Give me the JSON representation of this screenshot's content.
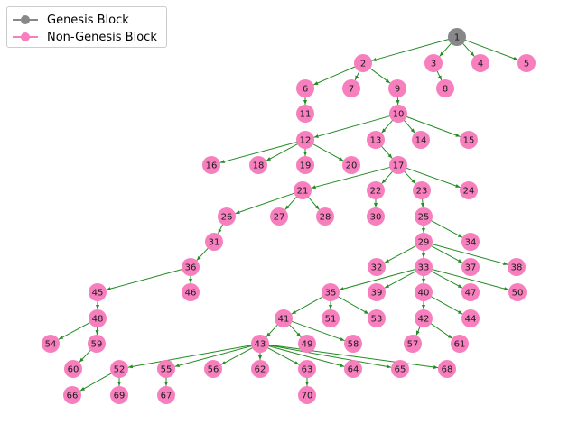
{
  "legend": {
    "genesis_label": "Genesis Block",
    "genesis_color": "#888888",
    "block_label": "Non-Genesis Block",
    "block_color": "#f77fbe"
  },
  "edge_color": "#228b22",
  "nodes": [
    {
      "id": "1",
      "genesis": true
    },
    {
      "id": "2"
    },
    {
      "id": "3"
    },
    {
      "id": "4"
    },
    {
      "id": "5"
    },
    {
      "id": "6"
    },
    {
      "id": "7"
    },
    {
      "id": "8"
    },
    {
      "id": "9"
    },
    {
      "id": "10"
    },
    {
      "id": "11"
    },
    {
      "id": "12"
    },
    {
      "id": "13"
    },
    {
      "id": "14"
    },
    {
      "id": "15"
    },
    {
      "id": "16"
    },
    {
      "id": "17"
    },
    {
      "id": "18"
    },
    {
      "id": "19"
    },
    {
      "id": "20"
    },
    {
      "id": "21"
    },
    {
      "id": "22"
    },
    {
      "id": "23"
    },
    {
      "id": "24"
    },
    {
      "id": "25"
    },
    {
      "id": "26"
    },
    {
      "id": "27"
    },
    {
      "id": "28"
    },
    {
      "id": "29"
    },
    {
      "id": "30"
    },
    {
      "id": "31"
    },
    {
      "id": "32"
    },
    {
      "id": "33"
    },
    {
      "id": "34"
    },
    {
      "id": "35"
    },
    {
      "id": "36"
    },
    {
      "id": "37"
    },
    {
      "id": "38"
    },
    {
      "id": "39"
    },
    {
      "id": "40"
    },
    {
      "id": "41"
    },
    {
      "id": "42"
    },
    {
      "id": "43"
    },
    {
      "id": "44"
    },
    {
      "id": "45"
    },
    {
      "id": "46"
    },
    {
      "id": "47"
    },
    {
      "id": "48"
    },
    {
      "id": "49"
    },
    {
      "id": "50"
    },
    {
      "id": "51"
    },
    {
      "id": "52"
    },
    {
      "id": "53"
    },
    {
      "id": "54"
    },
    {
      "id": "55"
    },
    {
      "id": "56"
    },
    {
      "id": "57"
    },
    {
      "id": "58"
    },
    {
      "id": "59"
    },
    {
      "id": "60"
    },
    {
      "id": "61"
    },
    {
      "id": "62"
    },
    {
      "id": "63"
    },
    {
      "id": "64"
    },
    {
      "id": "65"
    },
    {
      "id": "66"
    },
    {
      "id": "67"
    },
    {
      "id": "68"
    },
    {
      "id": "69"
    },
    {
      "id": "70"
    }
  ],
  "edges": [
    [
      "1",
      "2"
    ],
    [
      "1",
      "3"
    ],
    [
      "1",
      "4"
    ],
    [
      "1",
      "5"
    ],
    [
      "2",
      "6"
    ],
    [
      "2",
      "7"
    ],
    [
      "2",
      "9"
    ],
    [
      "3",
      "8"
    ],
    [
      "6",
      "11"
    ],
    [
      "9",
      "10"
    ],
    [
      "10",
      "12"
    ],
    [
      "10",
      "13"
    ],
    [
      "10",
      "14"
    ],
    [
      "10",
      "15"
    ],
    [
      "12",
      "16"
    ],
    [
      "12",
      "18"
    ],
    [
      "12",
      "19"
    ],
    [
      "12",
      "20"
    ],
    [
      "13",
      "17"
    ],
    [
      "17",
      "21"
    ],
    [
      "17",
      "22"
    ],
    [
      "17",
      "23"
    ],
    [
      "17",
      "24"
    ],
    [
      "21",
      "26"
    ],
    [
      "21",
      "27"
    ],
    [
      "21",
      "28"
    ],
    [
      "22",
      "30"
    ],
    [
      "23",
      "25"
    ],
    [
      "25",
      "29"
    ],
    [
      "25",
      "34"
    ],
    [
      "26",
      "31"
    ],
    [
      "31",
      "36"
    ],
    [
      "29",
      "32"
    ],
    [
      "29",
      "33"
    ],
    [
      "29",
      "37"
    ],
    [
      "29",
      "38"
    ],
    [
      "33",
      "35"
    ],
    [
      "33",
      "39"
    ],
    [
      "33",
      "40"
    ],
    [
      "33",
      "47"
    ],
    [
      "33",
      "50"
    ],
    [
      "36",
      "45"
    ],
    [
      "36",
      "46"
    ],
    [
      "35",
      "41"
    ],
    [
      "35",
      "51"
    ],
    [
      "35",
      "53"
    ],
    [
      "40",
      "42"
    ],
    [
      "40",
      "44"
    ],
    [
      "45",
      "48"
    ],
    [
      "41",
      "43"
    ],
    [
      "41",
      "49"
    ],
    [
      "41",
      "58"
    ],
    [
      "42",
      "57"
    ],
    [
      "42",
      "61"
    ],
    [
      "48",
      "54"
    ],
    [
      "48",
      "59"
    ],
    [
      "59",
      "60"
    ],
    [
      "43",
      "52"
    ],
    [
      "43",
      "55"
    ],
    [
      "43",
      "56"
    ],
    [
      "43",
      "62"
    ],
    [
      "43",
      "63"
    ],
    [
      "43",
      "64"
    ],
    [
      "43",
      "65"
    ],
    [
      "43",
      "68"
    ],
    [
      "52",
      "66"
    ],
    [
      "52",
      "69"
    ],
    [
      "55",
      "67"
    ],
    [
      "63",
      "70"
    ]
  ]
}
